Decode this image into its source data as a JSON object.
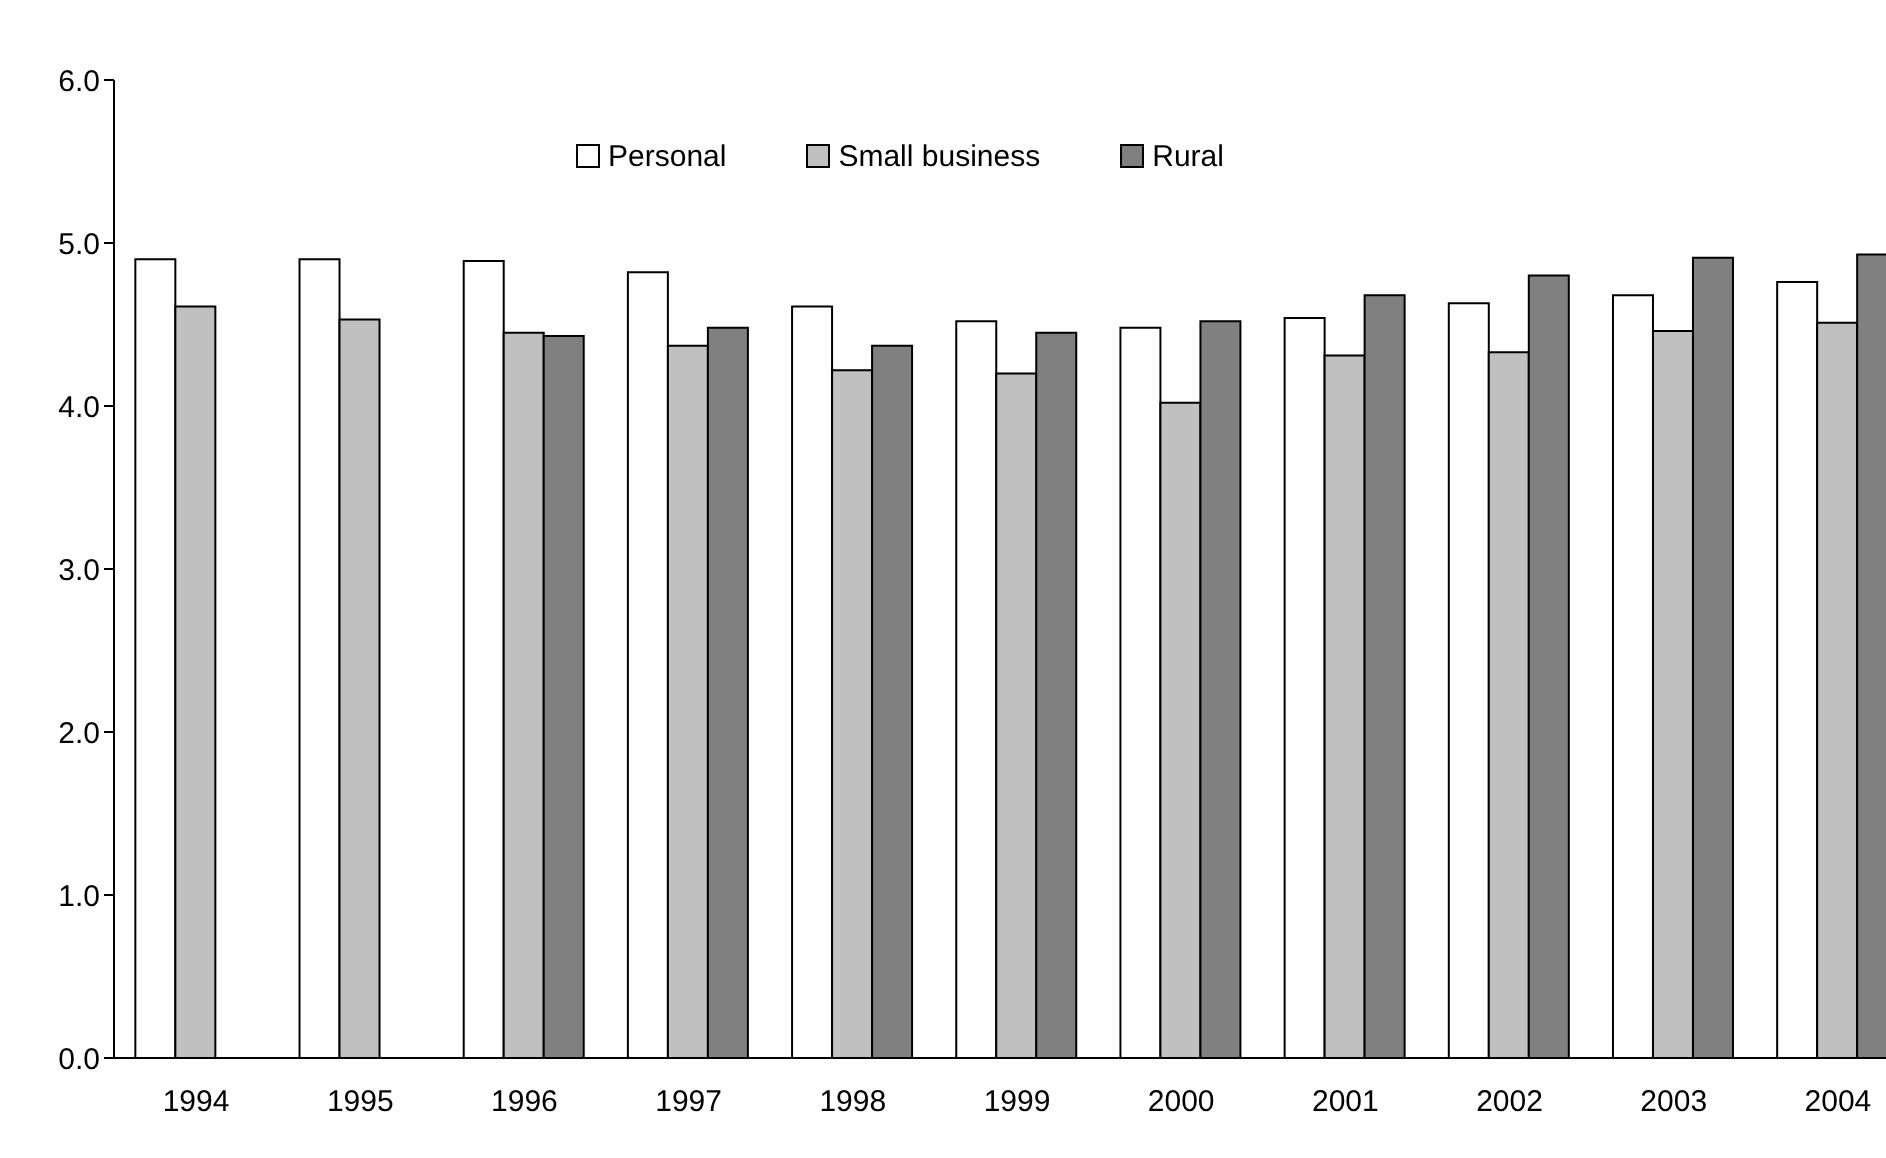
{
  "chart_data": {
    "type": "bar",
    "categories": [
      "1994",
      "1995",
      "1996",
      "1997",
      "1998",
      "1999",
      "2000",
      "2001",
      "2002",
      "2003",
      "2004"
    ],
    "series": [
      {
        "name": "Personal",
        "color": "#ffffff",
        "values": [
          4.9,
          4.9,
          4.89,
          4.82,
          4.61,
          4.52,
          4.48,
          4.54,
          4.63,
          4.68,
          4.76
        ]
      },
      {
        "name": "Small business",
        "color": "#c0c0c0",
        "values": [
          4.61,
          4.53,
          4.45,
          4.37,
          4.22,
          4.2,
          4.02,
          4.31,
          4.33,
          4.46,
          4.51
        ]
      },
      {
        "name": "Rural",
        "color": "#808080",
        "values": [
          null,
          null,
          4.43,
          4.48,
          4.37,
          4.45,
          4.52,
          4.68,
          4.8,
          4.91,
          4.93
        ]
      }
    ],
    "ylim": [
      0,
      6
    ],
    "yticks": [
      {
        "value": 0,
        "label": "0.0"
      },
      {
        "value": 1,
        "label": "1.0"
      },
      {
        "value": 2,
        "label": "2.0"
      },
      {
        "value": 3,
        "label": "3.0"
      },
      {
        "value": 4,
        "label": "4.0"
      },
      {
        "value": 5,
        "label": "5.0"
      },
      {
        "value": 6,
        "label": "6.0"
      }
    ],
    "grid": false,
    "legend": "top"
  }
}
